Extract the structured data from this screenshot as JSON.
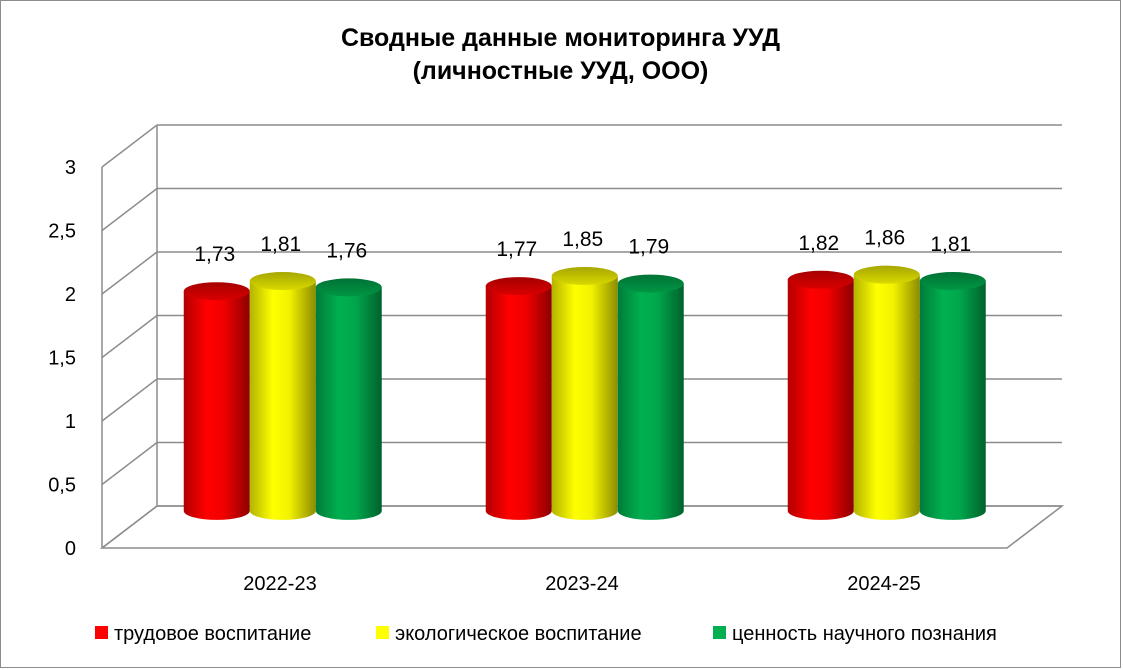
{
  "chart_data": {
    "type": "bar",
    "title_line1": "Сводные данные мониторинга УУД",
    "title_line2": "(личностные УУД, ООО)",
    "categories": [
      "2022-23",
      "2023-24",
      "2024-25"
    ],
    "series": [
      {
        "name": "трудовое воспитание",
        "color": "#ff0000",
        "values": [
          1.73,
          1.77,
          1.82
        ],
        "labels": [
          "1,73",
          "1,77",
          "1,82"
        ]
      },
      {
        "name": "экологическое воспитание",
        "color": "#ffff00",
        "values": [
          1.81,
          1.85,
          1.86
        ],
        "labels": [
          "1,81",
          "1,85",
          "1,86"
        ]
      },
      {
        "name": "ценность научного познания",
        "color": "#00b050",
        "values": [
          1.76,
          1.79,
          1.81
        ],
        "labels": [
          "1,76",
          "1,79",
          "1,81"
        ]
      }
    ],
    "yticks": [
      {
        "value": 0,
        "label": "0"
      },
      {
        "value": 0.5,
        "label": "0,5"
      },
      {
        "value": 1,
        "label": "1"
      },
      {
        "value": 1.5,
        "label": "1,5"
      },
      {
        "value": 2,
        "label": "2"
      },
      {
        "value": 2.5,
        "label": "2,5"
      },
      {
        "value": 3,
        "label": "3"
      }
    ],
    "ylim": [
      0,
      3
    ],
    "grid": true,
    "legend_position": "bottom",
    "bar_shape": "3d-cylinder"
  }
}
